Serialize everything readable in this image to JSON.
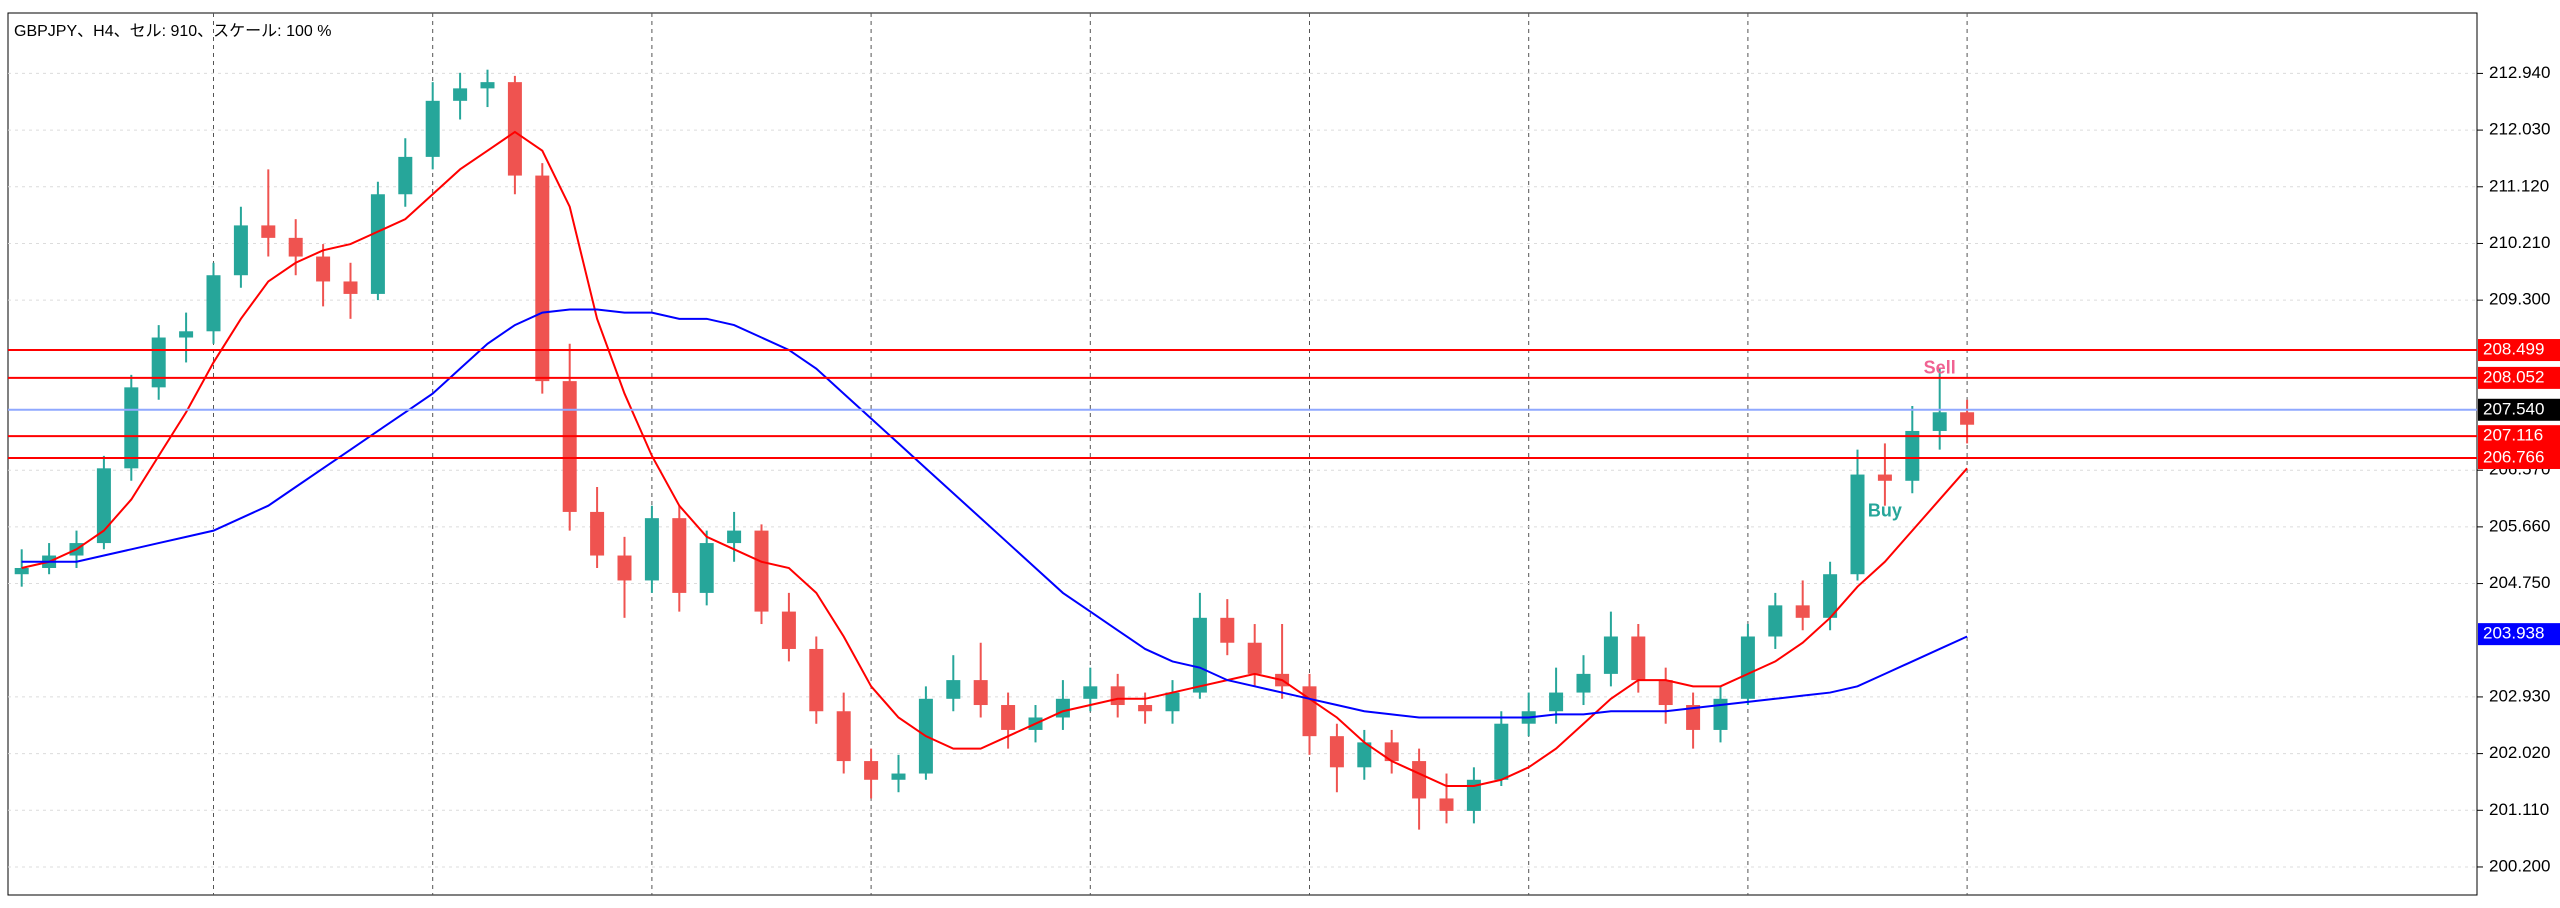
{
  "chart_data": {
    "type": "candlestick",
    "title": "GBPJPY、H4、セル: 910、スケール: 100 %",
    "ylim": [
      199.75,
      213.91
    ],
    "yticks": [
      {
        "value": 212.94,
        "label": "212.940"
      },
      {
        "value": 212.03,
        "label": "212.030"
      },
      {
        "value": 211.12,
        "label": "211.120"
      },
      {
        "value": 210.21,
        "label": "210.210"
      },
      {
        "value": 209.3,
        "label": "209.300"
      },
      {
        "value": 206.57,
        "label": "206.570"
      },
      {
        "value": 205.66,
        "label": "205.660"
      },
      {
        "value": 204.75,
        "label": "204.750"
      },
      {
        "value": 202.93,
        "label": "202.930"
      },
      {
        "value": 202.02,
        "label": "202.020"
      },
      {
        "value": 201.11,
        "label": "201.110"
      },
      {
        "value": 200.2,
        "label": "200.200"
      }
    ],
    "grid": true,
    "up_color": "#26a69a",
    "down_color": "#ef5350",
    "candles": [
      [
        204.9,
        205.3,
        204.7,
        205.0
      ],
      [
        205.0,
        205.4,
        204.9,
        205.2
      ],
      [
        205.2,
        205.6,
        205.0,
        205.4
      ],
      [
        205.4,
        206.8,
        205.3,
        206.6
      ],
      [
        206.6,
        208.1,
        206.4,
        207.9
      ],
      [
        207.9,
        208.9,
        207.7,
        208.7
      ],
      [
        208.7,
        209.1,
        208.3,
        208.8
      ],
      [
        208.8,
        209.9,
        208.6,
        209.7
      ],
      [
        209.7,
        210.8,
        209.5,
        210.5
      ],
      [
        210.5,
        211.4,
        210.0,
        210.3
      ],
      [
        210.3,
        210.6,
        209.7,
        210.0
      ],
      [
        210.0,
        210.2,
        209.2,
        209.6
      ],
      [
        209.6,
        209.9,
        209.0,
        209.4
      ],
      [
        209.4,
        211.2,
        209.3,
        211.0
      ],
      [
        211.0,
        211.9,
        210.8,
        211.6
      ],
      [
        211.6,
        212.8,
        211.4,
        212.5
      ],
      [
        212.5,
        212.95,
        212.2,
        212.7
      ],
      [
        212.7,
        213.0,
        212.4,
        212.8
      ],
      [
        212.8,
        212.9,
        211.0,
        211.3
      ],
      [
        211.3,
        211.5,
        207.8,
        208.0
      ],
      [
        208.0,
        208.6,
        205.6,
        205.9
      ],
      [
        205.9,
        206.3,
        205.0,
        205.2
      ],
      [
        205.2,
        205.5,
        204.2,
        204.8
      ],
      [
        204.8,
        206.0,
        204.6,
        205.8
      ],
      [
        205.8,
        206.0,
        204.3,
        204.6
      ],
      [
        204.6,
        205.6,
        204.4,
        205.4
      ],
      [
        205.4,
        205.9,
        205.1,
        205.6
      ],
      [
        205.6,
        205.7,
        204.1,
        204.3
      ],
      [
        204.3,
        204.6,
        203.5,
        203.7
      ],
      [
        203.7,
        203.9,
        202.5,
        202.7
      ],
      [
        202.7,
        203.0,
        201.7,
        201.9
      ],
      [
        201.9,
        202.1,
        201.3,
        201.6
      ],
      [
        201.6,
        202.0,
        201.4,
        201.7
      ],
      [
        201.7,
        203.1,
        201.6,
        202.9
      ],
      [
        202.9,
        203.6,
        202.7,
        203.2
      ],
      [
        203.2,
        203.8,
        202.6,
        202.8
      ],
      [
        202.8,
        203.0,
        202.1,
        202.4
      ],
      [
        202.4,
        202.8,
        202.2,
        202.6
      ],
      [
        202.6,
        203.2,
        202.4,
        202.9
      ],
      [
        202.9,
        203.4,
        202.7,
        203.1
      ],
      [
        203.1,
        203.3,
        202.6,
        202.8
      ],
      [
        202.8,
        203.0,
        202.5,
        202.7
      ],
      [
        202.7,
        203.2,
        202.5,
        203.0
      ],
      [
        203.0,
        204.6,
        202.9,
        204.2
      ],
      [
        204.2,
        204.5,
        203.6,
        203.8
      ],
      [
        203.8,
        204.1,
        203.1,
        203.3
      ],
      [
        203.3,
        204.1,
        202.9,
        203.1
      ],
      [
        203.1,
        203.3,
        202.0,
        202.3
      ],
      [
        202.3,
        202.5,
        201.4,
        201.8
      ],
      [
        201.8,
        202.4,
        201.6,
        202.2
      ],
      [
        202.2,
        202.4,
        201.7,
        201.9
      ],
      [
        201.9,
        202.1,
        200.8,
        201.3
      ],
      [
        201.3,
        201.7,
        200.9,
        201.1
      ],
      [
        201.1,
        201.8,
        200.9,
        201.6
      ],
      [
        201.6,
        202.7,
        201.5,
        202.5
      ],
      [
        202.5,
        203.0,
        202.3,
        202.7
      ],
      [
        202.7,
        203.4,
        202.5,
        203.0
      ],
      [
        203.0,
        203.6,
        202.8,
        203.3
      ],
      [
        203.3,
        204.3,
        203.1,
        203.9
      ],
      [
        203.9,
        204.1,
        203.0,
        203.2
      ],
      [
        203.2,
        203.4,
        202.5,
        202.8
      ],
      [
        202.8,
        203.0,
        202.1,
        202.4
      ],
      [
        202.4,
        203.1,
        202.2,
        202.9
      ],
      [
        202.9,
        204.1,
        202.8,
        203.9
      ],
      [
        203.9,
        204.6,
        203.7,
        204.4
      ],
      [
        204.4,
        204.8,
        204.0,
        204.2
      ],
      [
        204.2,
        205.1,
        204.0,
        204.9
      ],
      [
        204.9,
        206.9,
        204.8,
        206.5
      ],
      [
        206.5,
        207.0,
        206.0,
        206.4
      ],
      [
        206.4,
        207.6,
        206.2,
        207.2
      ],
      [
        207.2,
        208.2,
        206.9,
        207.5
      ],
      [
        207.5,
        207.7,
        207.0,
        207.3
      ]
    ],
    "series": [
      {
        "color": "#ff0000",
        "values": [
          205.0,
          205.1,
          205.3,
          205.6,
          206.1,
          206.8,
          207.5,
          208.3,
          209.0,
          209.6,
          209.9,
          210.1,
          210.2,
          210.4,
          210.6,
          211.0,
          211.4,
          211.7,
          212.0,
          211.7,
          210.8,
          209.0,
          207.8,
          206.8,
          206.0,
          205.5,
          205.3,
          205.1,
          205.0,
          204.6,
          203.9,
          203.1,
          202.6,
          202.3,
          202.1,
          202.1,
          202.3,
          202.5,
          202.7,
          202.8,
          202.9,
          202.9,
          203.0,
          203.1,
          203.2,
          203.3,
          203.2,
          202.9,
          202.6,
          202.2,
          201.9,
          201.7,
          201.5,
          201.5,
          201.6,
          201.8,
          202.1,
          202.5,
          202.9,
          203.2,
          203.2,
          203.1,
          203.1,
          203.3,
          203.5,
          203.8,
          204.2,
          204.7,
          205.1,
          205.6,
          206.1,
          206.6
        ]
      },
      {
        "color": "#0000ff",
        "values": [
          205.1,
          205.1,
          205.1,
          205.2,
          205.3,
          205.4,
          205.5,
          205.6,
          205.8,
          206.0,
          206.3,
          206.6,
          206.9,
          207.2,
          207.5,
          207.8,
          208.2,
          208.6,
          208.9,
          209.1,
          209.15,
          209.15,
          209.1,
          209.1,
          209.0,
          209.0,
          208.9,
          208.7,
          208.5,
          208.2,
          207.8,
          207.4,
          207.0,
          206.6,
          206.2,
          205.8,
          205.4,
          205.0,
          204.6,
          204.3,
          204.0,
          203.7,
          203.5,
          203.4,
          203.2,
          203.1,
          203.0,
          202.9,
          202.8,
          202.7,
          202.65,
          202.6,
          202.6,
          202.6,
          202.6,
          202.6,
          202.65,
          202.65,
          202.7,
          202.7,
          202.7,
          202.75,
          202.8,
          202.85,
          202.9,
          202.95,
          203.0,
          203.1,
          203.3,
          203.5,
          203.7,
          203.9
        ]
      }
    ],
    "levels": [
      {
        "value": 208.499,
        "color": "#ff0000",
        "line": true
      },
      {
        "value": 208.052,
        "color": "#ff0000",
        "line": true
      },
      {
        "value": 207.54,
        "label": "207.540",
        "color": "#000000",
        "line_color": "#8fa8ff",
        "line": true
      },
      {
        "value": 207.116,
        "color": "#ff0000",
        "line": true
      },
      {
        "value": 206.766,
        "color": "#ff0000",
        "line": true
      },
      {
        "value": 203.938,
        "color": "#0000ff",
        "line": false
      }
    ],
    "annotations": [
      {
        "text": "Buy",
        "candle": 68,
        "price": 205.9,
        "color": "#26a69a"
      },
      {
        "text": "Sell",
        "candle": 70,
        "price": 208.2,
        "color": "#f06292"
      }
    ]
  }
}
